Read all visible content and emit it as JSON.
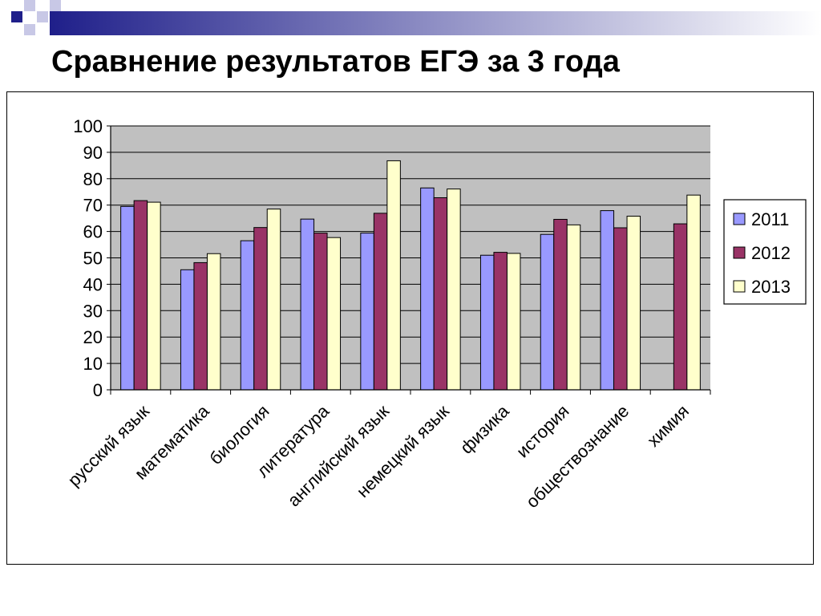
{
  "slide": {
    "title": "Сравнение результатов ЕГЭ за 3 года"
  },
  "colors": {
    "header_accent": "#1F1F8A",
    "header_square_light": "#C8C8E6",
    "plot_background": "#C0C0C0",
    "grid": "#000000"
  },
  "chart_data": {
    "type": "bar",
    "title": "",
    "xlabel": "",
    "ylabel": "",
    "ylim": [
      0,
      100
    ],
    "yticks": [
      0,
      10,
      20,
      30,
      40,
      50,
      60,
      70,
      80,
      90,
      100
    ],
    "grid": true,
    "legend_position": "right",
    "categories": [
      "русский язык",
      "математика",
      "биология",
      "литература",
      "английский язык",
      "немецкий язык",
      "физика",
      "история",
      "обществознание",
      "химия"
    ],
    "series": [
      {
        "name": "2011",
        "color": "#9999FF",
        "values": [
          69.5,
          45.5,
          56.5,
          64.7,
          59.4,
          76.5,
          51.0,
          58.9,
          67.9,
          null
        ]
      },
      {
        "name": "2012",
        "color": "#993366",
        "values": [
          71.7,
          48.2,
          61.5,
          59.4,
          66.9,
          72.8,
          52.1,
          64.6,
          61.4,
          62.9
        ]
      },
      {
        "name": "2013",
        "color": "#FFFFCC",
        "values": [
          71.1,
          51.6,
          68.5,
          57.7,
          86.8,
          76.1,
          51.7,
          62.5,
          65.8,
          73.8
        ]
      }
    ]
  }
}
